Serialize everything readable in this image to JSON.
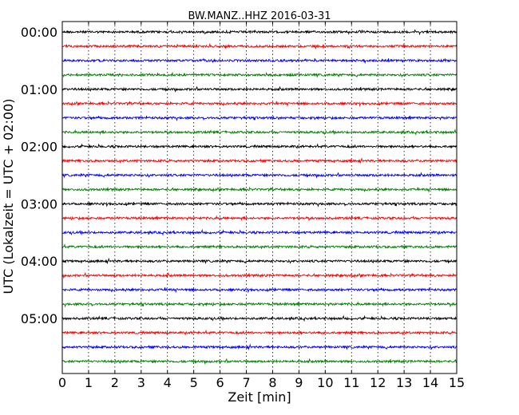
{
  "chart_data": {
    "type": "line",
    "title": "BW.MANZ..HHZ 2016-03-31",
    "xlabel": "Zeit  [min]",
    "ylabel": "UTC (Lokalzeit = UTC + 02:00)",
    "xlim": [
      0,
      15
    ],
    "x_ticks": [
      "0",
      "1",
      "2",
      "3",
      "4",
      "5",
      "6",
      "7",
      "8",
      "9",
      "10",
      "11",
      "12",
      "13",
      "14",
      "15"
    ],
    "y_tick_labels": [
      "00:00",
      "01:00",
      "02:00",
      "03:00",
      "04:00",
      "05:00"
    ],
    "grid": "vertical dotted",
    "trace_count": 24,
    "trace_interval_min": 15,
    "trace_colors": [
      "#000000",
      "#ff0000",
      "#0000ff",
      "#008000"
    ],
    "series": [
      {
        "start": "00:00",
        "color": "#000000"
      },
      {
        "start": "00:15",
        "color": "#ff0000"
      },
      {
        "start": "00:30",
        "color": "#0000ff"
      },
      {
        "start": "00:45",
        "color": "#008000"
      },
      {
        "start": "01:00",
        "color": "#000000"
      },
      {
        "start": "01:15",
        "color": "#ff0000"
      },
      {
        "start": "01:30",
        "color": "#0000ff"
      },
      {
        "start": "01:45",
        "color": "#008000"
      },
      {
        "start": "02:00",
        "color": "#000000"
      },
      {
        "start": "02:15",
        "color": "#ff0000"
      },
      {
        "start": "02:30",
        "color": "#0000ff"
      },
      {
        "start": "02:45",
        "color": "#008000"
      },
      {
        "start": "03:00",
        "color": "#000000"
      },
      {
        "start": "03:15",
        "color": "#ff0000"
      },
      {
        "start": "03:30",
        "color": "#0000ff"
      },
      {
        "start": "03:45",
        "color": "#008000"
      },
      {
        "start": "04:00",
        "color": "#000000"
      },
      {
        "start": "04:15",
        "color": "#ff0000"
      },
      {
        "start": "04:30",
        "color": "#0000ff"
      },
      {
        "start": "04:45",
        "color": "#008000"
      },
      {
        "start": "05:00",
        "color": "#000000"
      },
      {
        "start": "05:15",
        "color": "#ff0000"
      },
      {
        "start": "05:30",
        "color": "#0000ff"
      },
      {
        "start": "05:45",
        "color": "#008000"
      }
    ]
  }
}
